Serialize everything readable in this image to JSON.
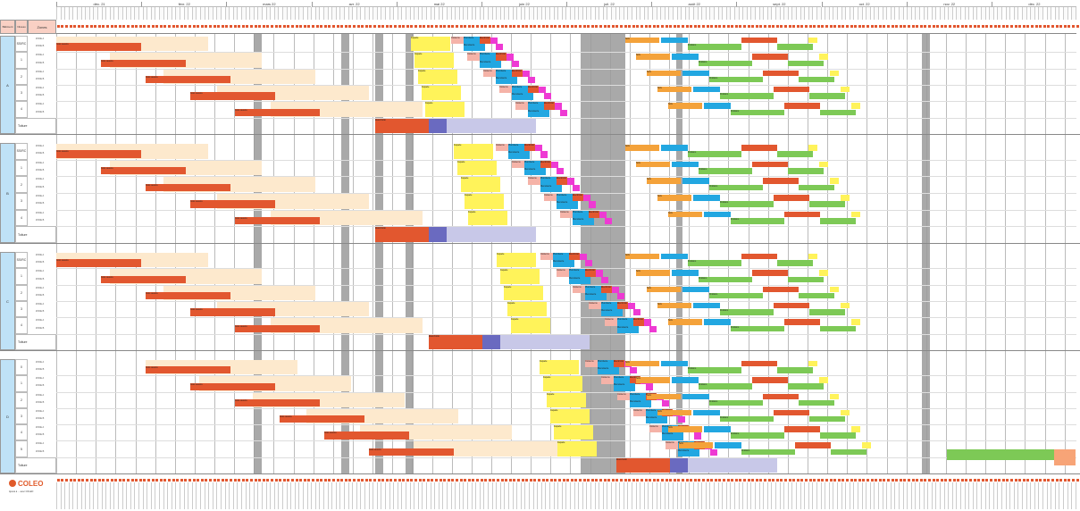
{
  "header": {
    "months": [
      "déc. 21",
      "févr. 22",
      "mars 22",
      "avr. 22",
      "mai 22",
      "juin 22",
      "juil. 22",
      "août 22",
      "sept. 22",
      "oct. 22",
      "nov. 22",
      "déc. 22"
    ],
    "col_labels": {
      "batiment": "Bâtiment",
      "niveau": "Niveau",
      "zones": "Zones"
    }
  },
  "buildings": [
    {
      "name": "A",
      "levels": [
        "SS/RC",
        "1",
        "2",
        "3",
        "4"
      ],
      "toiture": "Toiture"
    },
    {
      "name": "B",
      "levels": [
        "SS/RC",
        "1",
        "2",
        "3",
        "4"
      ],
      "toiture": "Toiture"
    },
    {
      "name": "C",
      "levels": [
        "SS/RC",
        "1",
        "2",
        "3",
        "4"
      ],
      "toiture": "Toiture"
    },
    {
      "name": "D",
      "levels": [
        "0",
        "1",
        "2",
        "3",
        "4",
        "5"
      ],
      "toiture": "Toiture"
    }
  ],
  "zone_labels": [
    "ZONE A",
    "ZONE B"
  ],
  "task_labels": {
    "gros_oeuvre": "Gros oeuvre",
    "facade": "Façade",
    "cloisons": "Cloisons",
    "plomberie": "Plomberie",
    "electricite": "Électricité",
    "menuiserie": "Menuiserie",
    "peinture": "Peinture",
    "sols": "Sols",
    "finitions": "Finitions",
    "etancheite": "Étanchéité"
  },
  "footer": {
    "logo": "COLEO",
    "line1": "Ajouté à ... avec COLEO",
    "line2": "",
    "line3": ""
  },
  "colors": {
    "red": "#e2572f",
    "beige": "#fde9cd",
    "yellow": "#fff35a",
    "blue": "#22a7e1",
    "pink": "#ee3ad3",
    "green": "#7dc956",
    "orange": "#f4a23a",
    "lavender": "#c8c8e8",
    "gray": "#9a9a9a",
    "lightblue": "#bfe2f7"
  }
}
